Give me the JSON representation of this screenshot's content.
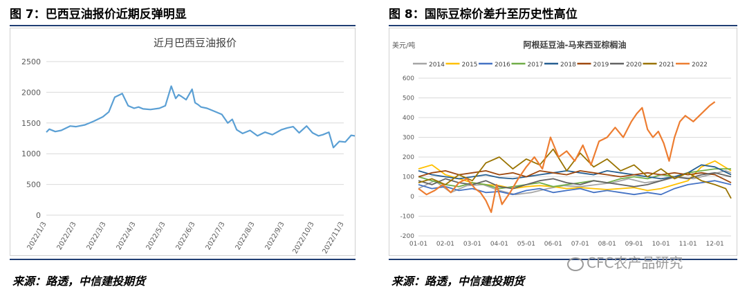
{
  "left_panel": {
    "figure_title": "图 7：巴西豆油报价近期反弹明显",
    "source": "来源：路透，中信建投期货"
  },
  "right_panel": {
    "figure_title": "图 8：国际豆棕价差升至历史性高位",
    "source": "来源：路透，中信建投期货"
  },
  "watermark": "CFC农产品研究",
  "colors": {
    "rule": "#1f3d73",
    "left_line": "#5a9fd4"
  },
  "chart_data": [
    {
      "type": "line",
      "title": "近月巴西豆油报价",
      "ylim": [
        0,
        2500
      ],
      "yticks": [
        0,
        500,
        1000,
        1500,
        2000,
        2500
      ],
      "xticks": [
        "2022/1/3",
        "2022/2/3",
        "2022/3/3",
        "2022/4/3",
        "2022/5/3",
        "2022/6/3",
        "2022/7/3",
        "2022/8/3",
        "2022/9/3",
        "2022/10/3",
        "2022/11/3"
      ],
      "grid": true,
      "color": "#5a9fd4",
      "x": [
        0,
        0.1,
        0.3,
        0.5,
        0.8,
        1.0,
        1.3,
        1.6,
        1.9,
        2.1,
        2.3,
        2.55,
        2.75,
        2.95,
        3.1,
        3.25,
        3.5,
        3.8,
        4.0,
        4.2,
        4.35,
        4.45,
        4.55,
        4.7,
        4.9,
        5.0,
        5.1,
        5.2,
        5.4,
        5.6,
        5.9,
        6.1,
        6.25,
        6.4,
        6.6,
        6.85,
        7.1,
        7.35,
        7.6,
        7.9,
        8.1,
        8.3,
        8.5,
        8.75,
        8.95,
        9.15,
        9.3,
        9.5,
        9.65,
        9.85,
        10.05,
        10.25,
        10.5,
        10.75,
        10.95,
        11.05
      ],
      "y": [
        1350,
        1400,
        1360,
        1380,
        1450,
        1440,
        1470,
        1530,
        1600,
        1680,
        1920,
        1980,
        1780,
        1740,
        1760,
        1730,
        1720,
        1740,
        1780,
        2100,
        1900,
        1960,
        1930,
        1880,
        2050,
        1830,
        1800,
        1760,
        1740,
        1700,
        1640,
        1500,
        1560,
        1390,
        1330,
        1380,
        1290,
        1350,
        1310,
        1390,
        1420,
        1440,
        1340,
        1450,
        1340,
        1290,
        1310,
        1350,
        1100,
        1200,
        1190,
        1300,
        1280,
        1340,
        1360,
        1400
      ]
    },
    {
      "type": "line",
      "title": "阿根廷豆油-马来西亚棕榈油",
      "ylabel": "美元/吨",
      "ylim": [
        -200,
        600
      ],
      "yticks": [
        -200,
        -100,
        0,
        100,
        200,
        300,
        400,
        500,
        600
      ],
      "xticks": [
        "01-01",
        "02-01",
        "03-01",
        "04-01",
        "05-01",
        "06-01",
        "07-01",
        "08-01",
        "09-01",
        "10-01",
        "11-01",
        "12-01"
      ],
      "grid": true,
      "legend": "top",
      "series": [
        {
          "name": "2014",
          "color": "#a5a5a5",
          "x": [
            0,
            0.6,
            1.2,
            1.8,
            2.4,
            3.0,
            3.6,
            4.2,
            4.8,
            5.4,
            6.0,
            6.6,
            7.2,
            7.8,
            8.4,
            9.0,
            9.6,
            10.2,
            10.8,
            11.4,
            11.6
          ],
          "y": [
            40,
            80,
            20,
            55,
            60,
            30,
            10,
            20,
            40,
            55,
            50,
            60,
            70,
            90,
            70,
            80,
            100,
            90,
            110,
            130,
            120
          ]
        },
        {
          "name": "2015",
          "color": "#ffc000",
          "x": [
            0,
            0.5,
            1.0,
            1.5,
            2.0,
            2.5,
            3.0,
            3.5,
            4.0,
            4.5,
            5.0,
            5.5,
            6.0,
            6.5,
            7.0,
            7.5,
            8.0,
            8.5,
            9.0,
            9.5,
            10.0,
            10.5,
            11.0,
            11.6
          ],
          "y": [
            140,
            160,
            110,
            90,
            70,
            60,
            55,
            40,
            50,
            55,
            50,
            40,
            45,
            40,
            35,
            40,
            45,
            30,
            40,
            60,
            80,
            150,
            180,
            130
          ]
        },
        {
          "name": "2016",
          "color": "#4472c4",
          "x": [
            0,
            0.5,
            1.0,
            1.5,
            2.0,
            2.5,
            3.0,
            3.5,
            4.0,
            4.5,
            5.0,
            5.5,
            6.0,
            6.5,
            7.0,
            7.5,
            8.0,
            8.5,
            9.0,
            9.5,
            10.0,
            10.5,
            11.0,
            11.6
          ],
          "y": [
            60,
            40,
            50,
            30,
            40,
            20,
            25,
            10,
            30,
            40,
            20,
            30,
            40,
            20,
            30,
            20,
            10,
            20,
            10,
            40,
            60,
            70,
            80,
            60
          ]
        },
        {
          "name": "2017",
          "color": "#70ad47",
          "x": [
            0,
            0.5,
            1.0,
            1.5,
            2.0,
            2.5,
            3.0,
            3.5,
            4.0,
            4.5,
            5.0,
            5.5,
            6.0,
            6.5,
            7.0,
            7.5,
            8.0,
            8.5,
            9.0,
            9.5,
            10.0,
            10.5,
            11.0,
            11.6
          ],
          "y": [
            100,
            80,
            60,
            50,
            70,
            60,
            40,
            50,
            60,
            70,
            50,
            60,
            70,
            80,
            70,
            90,
            100,
            90,
            110,
            100,
            120,
            130,
            140,
            140
          ]
        },
        {
          "name": "2018",
          "color": "#255e91",
          "x": [
            0,
            0.5,
            1.0,
            1.5,
            2.0,
            2.5,
            3.0,
            3.5,
            4.0,
            4.5,
            5.0,
            5.5,
            6.0,
            6.5,
            7.0,
            7.5,
            8.0,
            8.5,
            9.0,
            9.5,
            10.0,
            10.5,
            11.0,
            11.6
          ],
          "y": [
            130,
            110,
            100,
            90,
            100,
            110,
            95,
            90,
            100,
            110,
            120,
            130,
            120,
            110,
            130,
            120,
            110,
            100,
            90,
            100,
            120,
            160,
            150,
            110
          ]
        },
        {
          "name": "2019",
          "color": "#9e480e",
          "x": [
            0,
            0.5,
            1.0,
            1.5,
            2.0,
            2.5,
            3.0,
            3.5,
            4.0,
            4.5,
            5.0,
            5.5,
            6.0,
            6.5,
            7.0,
            7.5,
            8.0,
            8.5,
            9.0,
            9.5,
            10.0,
            10.5,
            11.0,
            11.6
          ],
          "y": [
            100,
            120,
            130,
            110,
            120,
            130,
            110,
            120,
            100,
            130,
            120,
            110,
            130,
            120,
            110,
            100,
            110,
            120,
            110,
            120,
            110,
            120,
            110,
            70
          ]
        },
        {
          "name": "2020",
          "color": "#636363",
          "x": [
            0,
            0.5,
            1.0,
            1.5,
            2.0,
            2.5,
            3.0,
            3.5,
            4.0,
            4.5,
            5.0,
            5.5,
            6.0,
            6.5,
            7.0,
            7.5,
            8.0,
            8.5,
            9.0,
            9.5,
            10.0,
            10.5,
            11.0,
            11.6
          ],
          "y": [
            80,
            60,
            90,
            70,
            60,
            80,
            50,
            40,
            60,
            80,
            90,
            70,
            60,
            80,
            70,
            60,
            50,
            60,
            80,
            100,
            90,
            110,
            120,
            100
          ]
        },
        {
          "name": "2021",
          "color": "#997300",
          "x": [
            0,
            0.5,
            1.0,
            1.5,
            2.0,
            2.5,
            3.0,
            3.5,
            4.0,
            4.5,
            5.0,
            5.5,
            6.0,
            6.5,
            7.0,
            7.5,
            8.0,
            8.5,
            9.0,
            9.5,
            10.0,
            10.5,
            11.0,
            11.4,
            11.6
          ],
          "y": [
            70,
            90,
            60,
            110,
            80,
            170,
            200,
            140,
            190,
            160,
            240,
            130,
            220,
            150,
            190,
            130,
            160,
            100,
            140,
            90,
            120,
            80,
            60,
            40,
            -10
          ]
        },
        {
          "name": "2022",
          "color": "#ed7d31",
          "x": [
            0,
            0.3,
            0.6,
            0.9,
            1.2,
            1.5,
            1.8,
            2.1,
            2.3,
            2.5,
            2.7,
            2.9,
            3.1,
            3.4,
            3.7,
            4.0,
            4.3,
            4.6,
            4.9,
            5.2,
            5.5,
            5.8,
            6.1,
            6.4,
            6.7,
            7.0,
            7.3,
            7.6,
            7.9,
            8.1,
            8.3,
            8.5,
            8.7,
            8.9,
            9.1,
            9.3,
            9.5,
            9.7,
            9.9,
            10.2,
            10.5,
            10.8,
            11.0
          ],
          "y": [
            40,
            10,
            30,
            60,
            20,
            70,
            90,
            40,
            20,
            -20,
            -80,
            60,
            -40,
            20,
            90,
            150,
            200,
            140,
            300,
            200,
            230,
            180,
            260,
            160,
            280,
            300,
            350,
            300,
            380,
            420,
            450,
            340,
            300,
            330,
            270,
            180,
            300,
            380,
            410,
            380,
            420,
            460,
            480
          ]
        }
      ]
    }
  ]
}
